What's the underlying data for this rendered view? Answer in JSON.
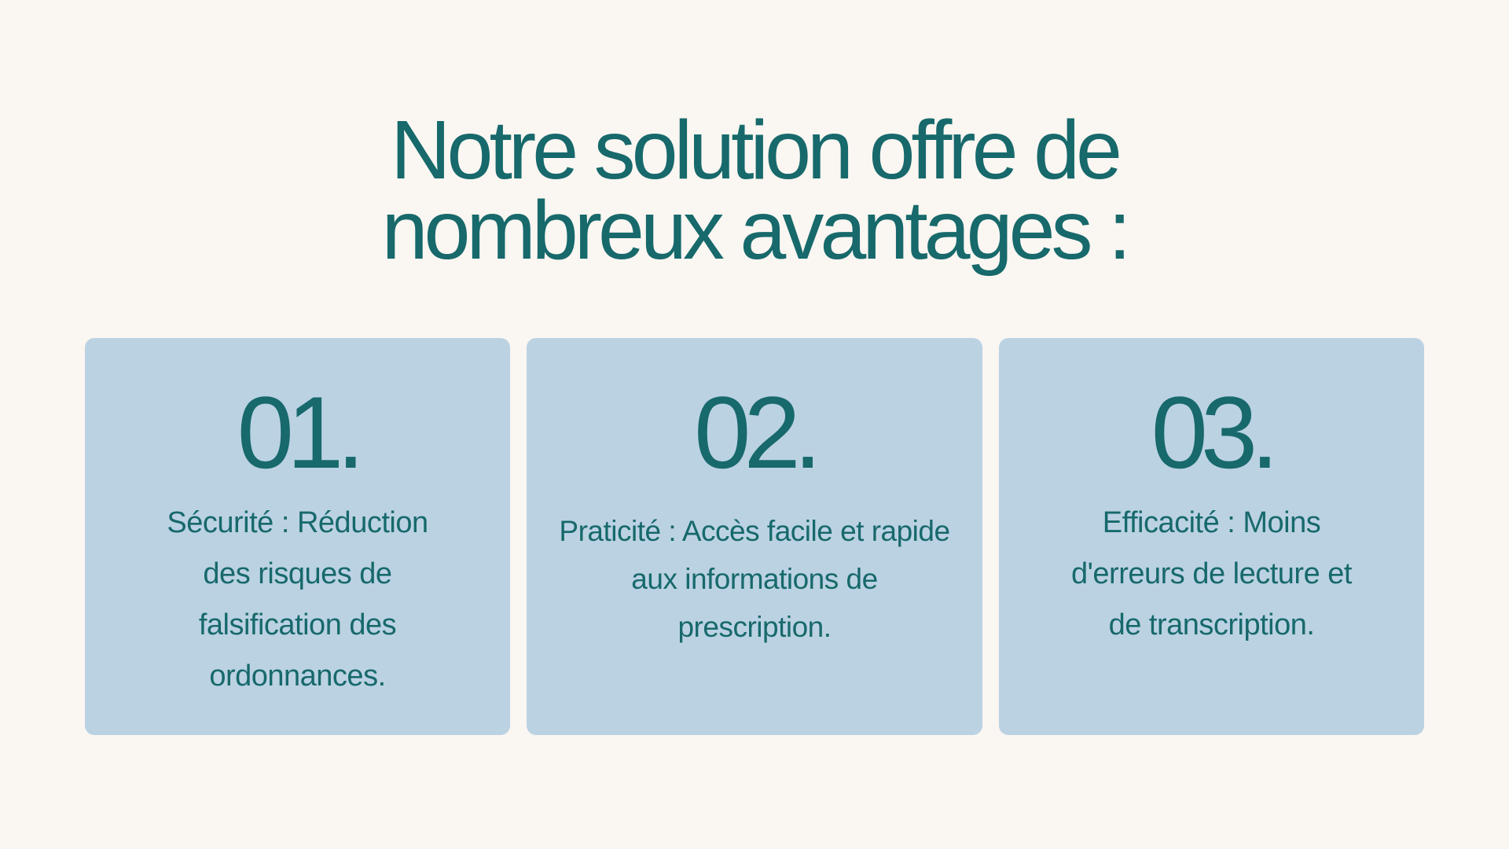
{
  "title": {
    "line1": "Notre solution offre de",
    "line2": "nombreux avantages :"
  },
  "cards": [
    {
      "number": "01.",
      "text": "Sécurité : Réduction des risques de falsification des ordonnances."
    },
    {
      "number": "02.",
      "text": "Praticité : Accès facile et rapide aux informations de prescription."
    },
    {
      "number": "03.",
      "text": "Efficacité : Moins d'erreurs de lecture et de transcription."
    }
  ],
  "colors": {
    "background": "#FAF6F2",
    "card": "#BBD2E3",
    "text": "#17696B"
  }
}
